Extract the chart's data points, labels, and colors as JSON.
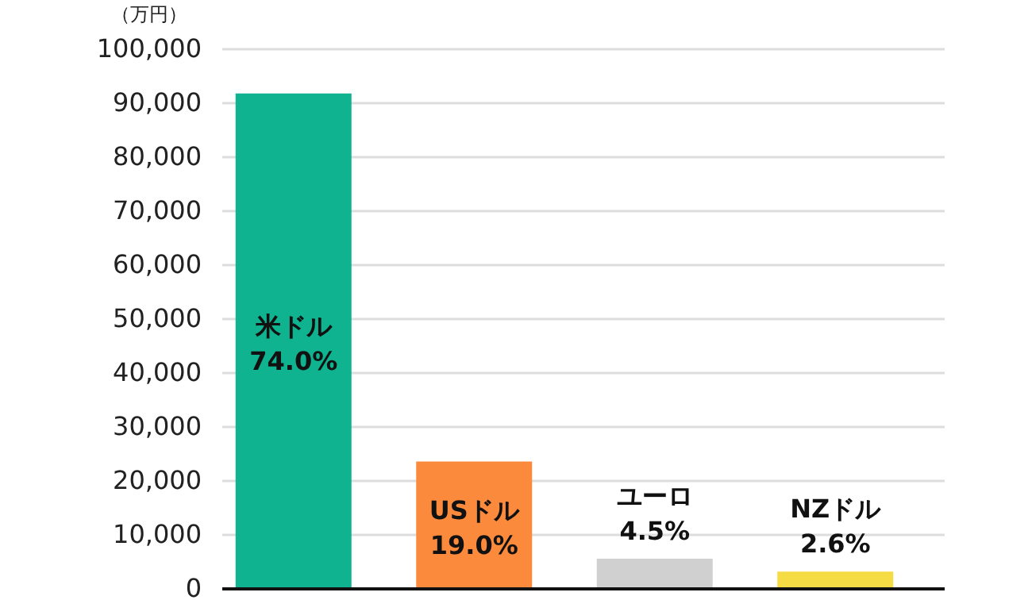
{
  "chart_data": {
    "type": "bar",
    "ylabel": "（万円）",
    "categories": [
      "米ドル",
      "USドル",
      "ユーロ",
      "NZドル"
    ],
    "values": [
      91800,
      23600,
      5600,
      3200
    ],
    "colors": [
      "#0fb38f",
      "#fb8a3c",
      "#d0d0d0",
      "#f5dc45"
    ],
    "annotations": [
      "74.0%",
      "19.0%",
      "4.5%",
      "2.6%"
    ],
    "ylim": [
      0,
      100000
    ],
    "yticks": [
      {
        "value": 0,
        "label": "0"
      },
      {
        "value": 10000,
        "label": "10,000"
      },
      {
        "value": 20000,
        "label": "20,000"
      },
      {
        "value": 30000,
        "label": "30,000"
      },
      {
        "value": 40000,
        "label": "40,000"
      },
      {
        "value": 50000,
        "label": "50,000"
      },
      {
        "value": 60000,
        "label": "60,000"
      },
      {
        "value": 70000,
        "label": "70,000"
      },
      {
        "value": 80000,
        "label": "80,000"
      },
      {
        "value": 90000,
        "label": "90,000"
      },
      {
        "value": 100000,
        "label": "100,000"
      }
    ],
    "grid": "y"
  }
}
